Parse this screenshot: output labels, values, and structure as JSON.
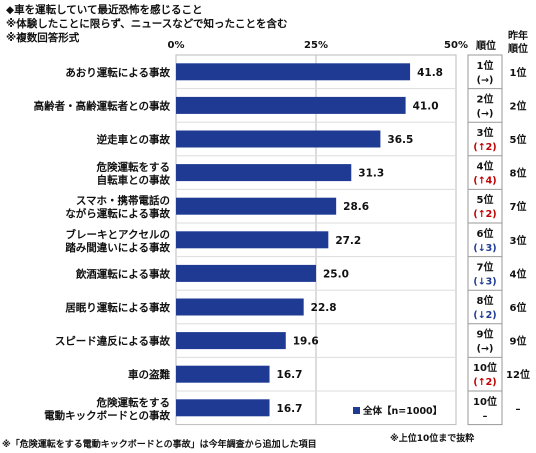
{
  "header": {
    "title": "◆車を運転していて最近恐怖を感じること",
    "note1": "※体験したことに限らず、ニュースなどで知ったことを含む",
    "note2": "※複数回答形式"
  },
  "columns": {
    "rank": "順位",
    "last_year": "昨年\n順位"
  },
  "footer": {
    "left": "※「危険運転をする電動キックボードとの事故」は今年調査から追加した項目",
    "right": "※上位10位まで抜粋"
  },
  "colors": {
    "bar": "#1f3a93",
    "up": "#c00000",
    "down": "#1f3a93",
    "grid": "#bbbbbb"
  },
  "chart_data": {
    "type": "bar",
    "orientation": "horizontal",
    "xlim": [
      0,
      50
    ],
    "ticks": [
      "0%",
      "25%",
      "50%"
    ],
    "legend": "全体【n=1000】",
    "legend_position": "bottom-right",
    "categories": [
      [
        "あおり運転による事故"
      ],
      [
        "高齢者・高齢運転者との事故"
      ],
      [
        "逆走車との事故"
      ],
      [
        "危険運転をする",
        "自転車との事故"
      ],
      [
        "スマホ・携帯電話の",
        "ながら運転による事故"
      ],
      [
        "ブレーキとアクセルの",
        "踏み間違いによる事故"
      ],
      [
        "飲酒運転による事故"
      ],
      [
        "居眠り運転による事故"
      ],
      [
        "スピード違反による事故"
      ],
      [
        "車の盗難"
      ],
      [
        "危険運転をする",
        "電動キックボードとの事故"
      ]
    ],
    "values": [
      41.8,
      41.0,
      36.5,
      31.3,
      28.6,
      27.2,
      25.0,
      22.8,
      19.6,
      16.7,
      16.7
    ],
    "value_labels": [
      "41.8",
      "41.0",
      "36.5",
      "31.3",
      "28.6",
      "27.2",
      "25.0",
      "22.8",
      "19.6",
      "16.7",
      "16.7"
    ],
    "rank": [
      "1位",
      "2位",
      "3位",
      "4位",
      "5位",
      "6位",
      "7位",
      "8位",
      "9位",
      "10位",
      "10位"
    ],
    "change": [
      "(→)",
      "(→)",
      "(↑2)",
      "(↑4)",
      "(↑2)",
      "(↓3)",
      "(↓3)",
      "(↓2)",
      "(→)",
      "(↑2)",
      "–"
    ],
    "change_dir": [
      "same",
      "same",
      "up",
      "up",
      "up",
      "down",
      "down",
      "down",
      "same",
      "up",
      "none"
    ],
    "last_year_rank": [
      "1位",
      "2位",
      "5位",
      "8位",
      "7位",
      "3位",
      "4位",
      "6位",
      "9位",
      "12位",
      "–"
    ]
  }
}
